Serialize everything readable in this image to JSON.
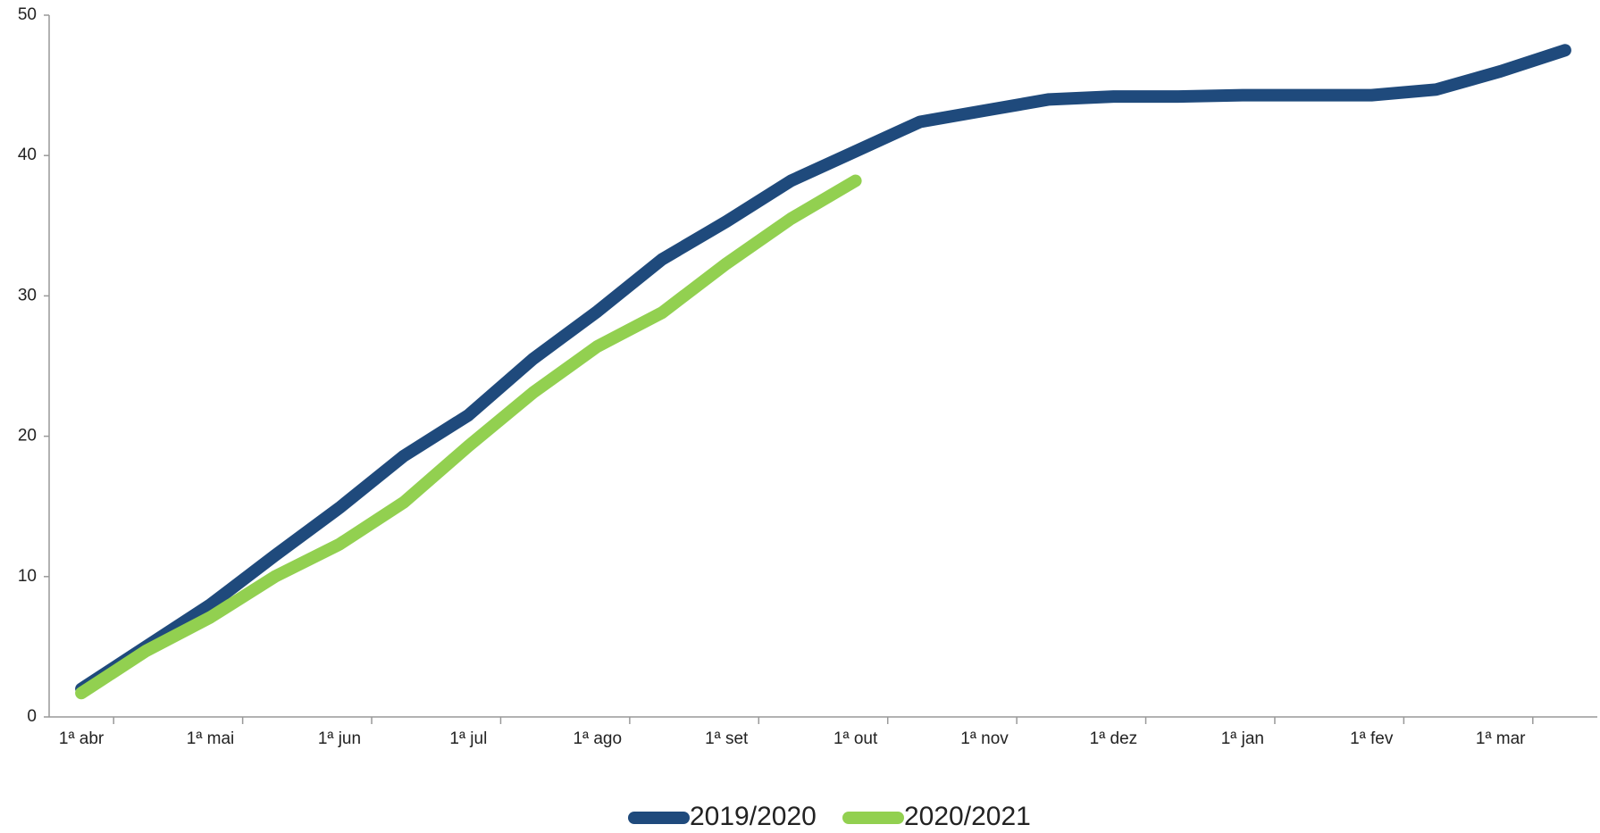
{
  "chart_data": {
    "type": "line",
    "categories": [
      "1ª abr",
      null,
      "1ª mai",
      null,
      "1ª jun",
      null,
      "1ª jul",
      null,
      "1ª ago",
      null,
      "1ª set",
      null,
      "1ª out",
      null,
      "1ª nov",
      null,
      "1ª dez",
      null,
      "1ª jan",
      null,
      "1ª fev",
      null,
      "1ª mar",
      null
    ],
    "series": [
      {
        "name": "2019/2020",
        "color": "#1f4a7c",
        "values": [
          2.0,
          5.0,
          8.0,
          11.5,
          14.9,
          18.6,
          21.5,
          25.5,
          28.9,
          32.6,
          35.3,
          38.2,
          40.3,
          42.4,
          43.2,
          44.0,
          44.2,
          44.2,
          44.3,
          44.3,
          44.3,
          44.7,
          46.0,
          47.5
        ]
      },
      {
        "name": "2020/2021",
        "color": "#92d050",
        "values": [
          1.7,
          4.7,
          7.1,
          10.0,
          12.3,
          15.3,
          19.3,
          23.1,
          26.4,
          28.8,
          32.3,
          35.5,
          38.2,
          null,
          null,
          null,
          null,
          null,
          null,
          null,
          null,
          null,
          null,
          null
        ]
      }
    ],
    "ylim": [
      0,
      50
    ],
    "yticks": [
      0,
      10,
      20,
      30,
      40,
      50
    ],
    "grid": false,
    "legend": "bottom"
  }
}
